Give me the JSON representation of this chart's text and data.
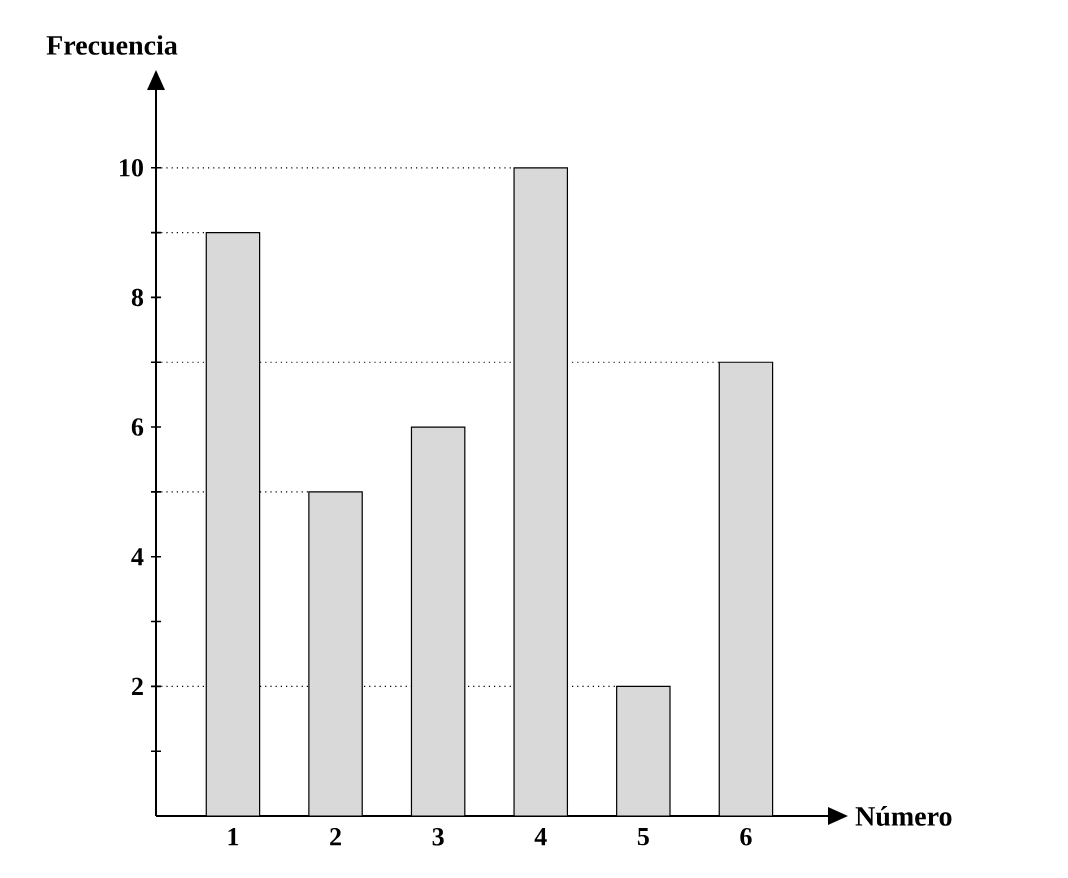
{
  "chart_data": {
    "type": "bar",
    "xlabel": "Número",
    "ylabel": "Frecuencia",
    "categories": [
      "1",
      "2",
      "3",
      "4",
      "5",
      "6"
    ],
    "values": [
      9,
      5,
      6,
      10,
      2,
      7
    ],
    "color": "#d9d9d9",
    "ylim": [
      0,
      11.2
    ],
    "yticks": [
      {
        "value": 1,
        "label": null
      },
      2,
      {
        "value": 3,
        "label": null
      },
      4,
      {
        "value": 5,
        "label": null
      },
      6,
      {
        "value": 7,
        "label": null
      },
      8,
      {
        "value": 9,
        "label": null
      },
      10
    ],
    "ref_lines": [
      {
        "axis": "y",
        "value": 10,
        "line_style": "dotted"
      },
      {
        "axis": "y",
        "value": 9,
        "line_style": "dotted"
      },
      {
        "axis": "y",
        "value": 7,
        "line_style": "dotted"
      },
      {
        "axis": "y",
        "value": 5,
        "line_style": "dotted"
      },
      {
        "axis": "y",
        "value": 2,
        "line_style": "dotted"
      }
    ],
    "grid": false
  }
}
